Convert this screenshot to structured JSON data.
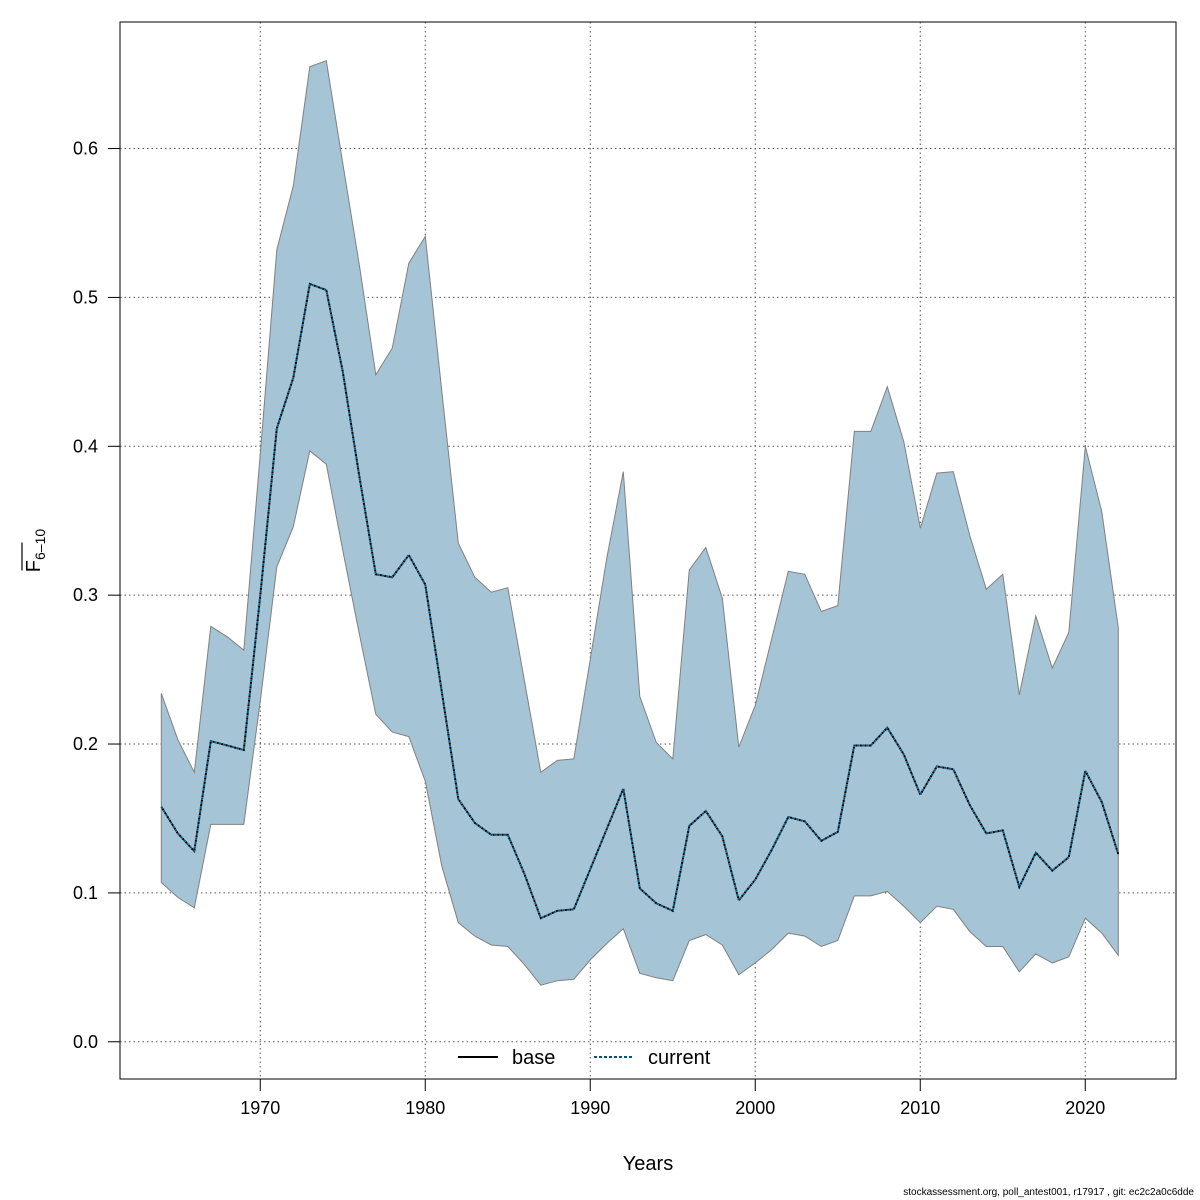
{
  "chart_data": {
    "type": "area",
    "xlabel": "Years",
    "ylabel": "F",
    "ylabel_subscript": "6–10",
    "xlim": [
      1961.5,
      2025.5
    ],
    "ylim": [
      -0.025,
      0.685
    ],
    "xticks": [
      1970,
      1980,
      1990,
      2000,
      2010,
      2020
    ],
    "yticks": [
      0.0,
      0.1,
      0.2,
      0.3,
      0.4,
      0.5,
      0.6
    ],
    "ytick_labels": [
      "0.0",
      "0.1",
      "0.2",
      "0.3",
      "0.4",
      "0.5",
      "0.6"
    ],
    "grid": true,
    "legend_position": "bottom",
    "colors": {
      "band": "#a5c4d5",
      "band_edge": "#808080",
      "current": "#00557f",
      "base": "#000000"
    },
    "x": [
      1964,
      1965,
      1966,
      1967,
      1968,
      1969,
      1970,
      1971,
      1972,
      1973,
      1974,
      1975,
      1976,
      1977,
      1978,
      1979,
      1980,
      1981,
      1982,
      1983,
      1984,
      1985,
      1986,
      1987,
      1988,
      1989,
      1990,
      1991,
      1992,
      1993,
      1994,
      1995,
      1996,
      1997,
      1998,
      1999,
      2000,
      2001,
      2002,
      2003,
      2004,
      2005,
      2006,
      2007,
      2008,
      2009,
      2010,
      2011,
      2012,
      2013,
      2014,
      2015,
      2016,
      2017,
      2018,
      2019,
      2020,
      2021,
      2022
    ],
    "series": [
      {
        "name": "base",
        "style": "solid",
        "values": [
          0.158,
          0.14,
          0.128,
          0.202,
          0.199,
          0.196,
          0.3,
          0.412,
          0.446,
          0.509,
          0.505,
          0.45,
          0.38,
          0.314,
          0.312,
          0.327,
          0.307,
          0.235,
          0.163,
          0.147,
          0.139,
          0.139,
          0.113,
          0.083,
          0.088,
          0.089,
          0.116,
          0.143,
          0.17,
          0.103,
          0.093,
          0.088,
          0.145,
          0.155,
          0.138,
          0.095,
          0.109,
          0.129,
          0.151,
          0.148,
          0.135,
          0.141,
          0.199,
          0.199,
          0.211,
          0.193,
          0.166,
          0.185,
          0.183,
          0.159,
          0.14,
          0.142,
          0.104,
          0.127,
          0.115,
          0.124,
          0.182,
          0.161,
          0.126
        ]
      },
      {
        "name": "current",
        "style": "dotted",
        "values": [
          0.158,
          0.14,
          0.128,
          0.202,
          0.199,
          0.196,
          0.3,
          0.412,
          0.446,
          0.509,
          0.505,
          0.45,
          0.38,
          0.314,
          0.312,
          0.327,
          0.307,
          0.235,
          0.163,
          0.147,
          0.139,
          0.139,
          0.113,
          0.083,
          0.088,
          0.089,
          0.116,
          0.143,
          0.17,
          0.103,
          0.093,
          0.088,
          0.145,
          0.155,
          0.138,
          0.095,
          0.109,
          0.129,
          0.151,
          0.148,
          0.135,
          0.141,
          0.199,
          0.199,
          0.211,
          0.193,
          0.166,
          0.185,
          0.183,
          0.159,
          0.14,
          0.142,
          0.104,
          0.127,
          0.115,
          0.124,
          0.182,
          0.161,
          0.126
        ]
      }
    ],
    "band": {
      "upper": [
        0.234,
        0.203,
        0.181,
        0.279,
        0.272,
        0.263,
        0.395,
        0.532,
        0.575,
        0.655,
        0.659,
        0.59,
        0.522,
        0.448,
        0.466,
        0.523,
        0.541,
        0.437,
        0.335,
        0.312,
        0.302,
        0.305,
        0.243,
        0.181,
        0.189,
        0.19,
        0.257,
        0.325,
        0.383,
        0.232,
        0.201,
        0.19,
        0.317,
        0.332,
        0.298,
        0.198,
        0.226,
        0.271,
        0.316,
        0.314,
        0.289,
        0.293,
        0.41,
        0.41,
        0.44,
        0.403,
        0.345,
        0.382,
        0.383,
        0.34,
        0.304,
        0.314,
        0.233,
        0.286,
        0.251,
        0.275,
        0.4,
        0.356,
        0.278
      ],
      "lower": [
        0.107,
        0.097,
        0.09,
        0.146,
        0.146,
        0.146,
        0.229,
        0.319,
        0.346,
        0.397,
        0.388,
        0.33,
        0.274,
        0.22,
        0.208,
        0.205,
        0.175,
        0.118,
        0.08,
        0.071,
        0.065,
        0.064,
        0.052,
        0.038,
        0.041,
        0.042,
        0.055,
        0.066,
        0.076,
        0.046,
        0.043,
        0.041,
        0.068,
        0.072,
        0.065,
        0.045,
        0.053,
        0.062,
        0.073,
        0.071,
        0.064,
        0.068,
        0.098,
        0.098,
        0.101,
        0.091,
        0.08,
        0.091,
        0.089,
        0.074,
        0.064,
        0.064,
        0.047,
        0.059,
        0.053,
        0.057,
        0.083,
        0.073,
        0.058
      ]
    }
  },
  "footer_text": "stockassessment.org, poll_antest001, r17917 , git: ec2c2a0c6dde"
}
